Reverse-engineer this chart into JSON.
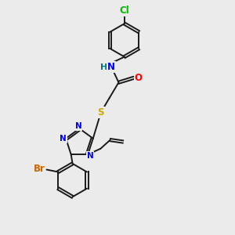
{
  "background_color": "#ebebeb",
  "bond_color": "#1a1a1a",
  "atom_colors": {
    "N": "#0000ee",
    "O": "#ff0000",
    "S": "#ccaa00",
    "Cl": "#00bb00",
    "Br": "#cc6600",
    "H": "#007777",
    "C": "#1a1a1a"
  },
  "font_size_atom": 8.5,
  "line_width": 1.4
}
